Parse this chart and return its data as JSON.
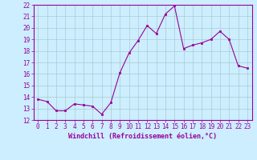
{
  "x": [
    0,
    1,
    2,
    3,
    4,
    5,
    6,
    7,
    8,
    9,
    10,
    11,
    12,
    13,
    14,
    15,
    16,
    17,
    18,
    19,
    20,
    21,
    22,
    23
  ],
  "y": [
    13.8,
    13.6,
    12.8,
    12.8,
    13.4,
    13.3,
    13.2,
    12.5,
    13.5,
    16.1,
    17.8,
    18.9,
    20.2,
    19.5,
    21.2,
    21.9,
    18.2,
    18.5,
    18.7,
    19.0,
    19.7,
    19.0,
    16.7,
    16.5
  ],
  "line_color": "#990099",
  "marker": "s",
  "marker_size": 2.0,
  "bg_color": "#cceeff",
  "grid_color": "#aacccc",
  "xlabel": "Windchill (Refroidissement éolien,°C)",
  "xlabel_color": "#990099",
  "tick_color": "#990099",
  "label_color": "#990099",
  "ylim": [
    12,
    22
  ],
  "xlim": [
    -0.5,
    23.5
  ],
  "yticks": [
    12,
    13,
    14,
    15,
    16,
    17,
    18,
    19,
    20,
    21,
    22
  ],
  "xticks": [
    0,
    1,
    2,
    3,
    4,
    5,
    6,
    7,
    8,
    9,
    10,
    11,
    12,
    13,
    14,
    15,
    16,
    17,
    18,
    19,
    20,
    21,
    22,
    23
  ],
  "tick_fontsize": 5.5,
  "xlabel_fontsize": 6.0
}
